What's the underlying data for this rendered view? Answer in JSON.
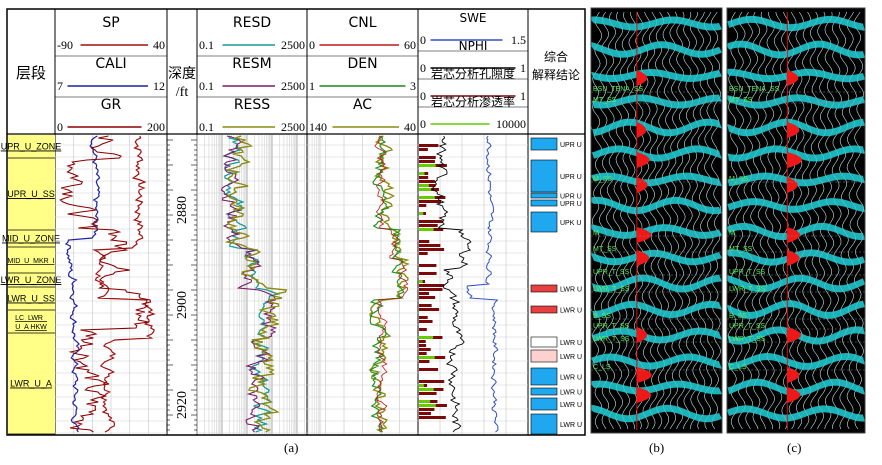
{
  "figure": {
    "captions": [
      "(a)",
      "(b)",
      "(c)"
    ]
  },
  "panel_a": {
    "col_zone": {
      "header": "层段"
    },
    "col_gr": {
      "curves": [
        {
          "name": "SP",
          "min": "-90",
          "max": "40",
          "color": "#a01010"
        },
        {
          "name": "CALI",
          "min": "7",
          "max": "12",
          "color": "#2020a0"
        },
        {
          "name": "GR",
          "min": "0",
          "max": "200",
          "color": "#8b0000"
        }
      ]
    },
    "col_depth": {
      "header_line1": "深度",
      "header_line2": "/ft",
      "ticks": [
        "2880",
        "2900",
        "2920"
      ]
    },
    "col_res": {
      "curves": [
        {
          "name": "RESD",
          "min": "0.1",
          "max": "2500",
          "color": "#1a9a9a"
        },
        {
          "name": "RESM",
          "min": "0.1",
          "max": "2500",
          "color": "#7b1a6a"
        },
        {
          "name": "RESS",
          "min": "0.1",
          "max": "2500",
          "color": "#8a8a10"
        }
      ]
    },
    "col_por": {
      "curves": [
        {
          "name": "CNL",
          "min": "0",
          "max": "60",
          "color": "#c01818"
        },
        {
          "name": "DEN",
          "min": "1",
          "max": "3",
          "color": "#1a8a1a"
        },
        {
          "name": "AC",
          "min": "140",
          "max": "40",
          "color": "#8a8a10"
        }
      ]
    },
    "col_core": {
      "curves": [
        {
          "name": "SWE",
          "min": "0",
          "max": "1.5",
          "color": "#3050c0"
        },
        {
          "name": "NPHI",
          "min": "0",
          "max": "1",
          "color": "#000000"
        },
        {
          "name": "岩芯分析孔隙度",
          "min": "0",
          "max": "1",
          "color": "#7a0a0a"
        },
        {
          "name": "岩芯分析渗透率",
          "min": "0",
          "max": "10000",
          "color": "#66cc00"
        }
      ]
    },
    "col_interp": {
      "header_line1": "综合",
      "header_line2": "解释结论"
    },
    "zones": [
      "UPR_U_ZONE",
      "UPR_U_SS",
      "MID_U_ZONE",
      "MID_U_MKR_I",
      "LWR_U_ZONE",
      "LWR_U_SS",
      "LC_LWR_U_A HKW",
      "LWR_U_A"
    ],
    "interp_labels": [
      "UPR U",
      "UPR U",
      "UPR U",
      "UPR U",
      "UPK U",
      "LWR U",
      "LWR U",
      "LWR U",
      "LWR U",
      "LWR U",
      "LWR U",
      "LWR U",
      "LWR U"
    ]
  },
  "panel_b": {
    "horizon_labels": [
      "BSU_TENA_SS",
      "MT_SS",
      "M_SS",
      "M",
      "MT_SS",
      "UPR_T_SS",
      "LWR_T_SS",
      "B_SS",
      "UPR_T_SS",
      "LWR_T_SS",
      "C_LS"
    ]
  },
  "panel_c": {
    "horizon_labels": [
      "BSU_TENA_SS",
      "MT_SS",
      "M_SS",
      "M",
      "MT_SS",
      "UPR_T_SS",
      "LWR_T_SS",
      "B_SS",
      "UPR_T_SS",
      "LWR_T_SS",
      "C_LS"
    ]
  },
  "chart_data": [
    {
      "type": "line",
      "title": "",
      "ylabel": "深度/ft",
      "depth_ticks": [
        2880,
        2900,
        2920
      ],
      "series": [
        {
          "name": "SP"
        },
        {
          "name": "CALI"
        },
        {
          "name": "GR"
        },
        {
          "name": "RESD"
        },
        {
          "name": "RESM"
        },
        {
          "name": "RESS"
        },
        {
          "name": "CNL"
        },
        {
          "name": "DEN"
        },
        {
          "name": "AC"
        },
        {
          "name": "SWE"
        },
        {
          "name": "NPHI"
        },
        {
          "name": "岩芯分析孔隙度"
        },
        {
          "name": "岩芯分析渗透率"
        }
      ]
    }
  ]
}
